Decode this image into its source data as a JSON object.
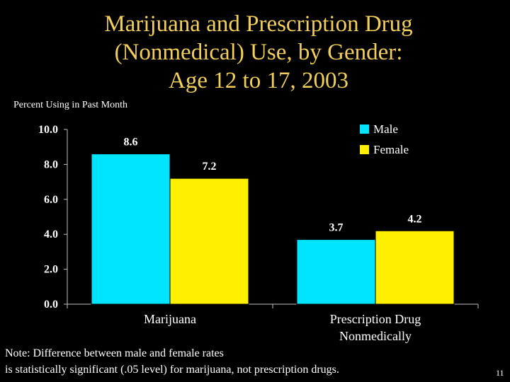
{
  "slide": {
    "title_lines": [
      "Marijuana and Prescription Drug",
      "(Nonmedical) Use, by Gender:",
      "Age 12 to 17, 2003"
    ],
    "note_lines": [
      "Note: Difference between male and female rates",
      "is statistically significant (.05 level) for marijuana, not prescription drugs."
    ],
    "page_number": "11"
  },
  "colors": {
    "background": "#000000",
    "title": "#f2ce5a",
    "male": "#00e5ff",
    "female": "#ffef00",
    "text": "#ffffff",
    "axis": "#bfbfbf"
  },
  "chart_data": {
    "type": "bar",
    "ylabel": "Percent Using in Past Month",
    "xlabel": "",
    "ylim": [
      0,
      10
    ],
    "yticks": [
      "0.0",
      "2.0",
      "4.0",
      "6.0",
      "8.0",
      "10.0"
    ],
    "categories": [
      [
        "Marijuana"
      ],
      [
        "Prescription Drug",
        "Nonmedically"
      ]
    ],
    "series": [
      {
        "name": "Male",
        "values": [
          8.6,
          3.7
        ],
        "labels": [
          "8.6",
          "3.7"
        ]
      },
      {
        "name": "Female",
        "values": [
          7.2,
          4.2
        ],
        "labels": [
          "7.2",
          "4.2"
        ]
      }
    ],
    "legend": "top-right",
    "grid": false
  }
}
